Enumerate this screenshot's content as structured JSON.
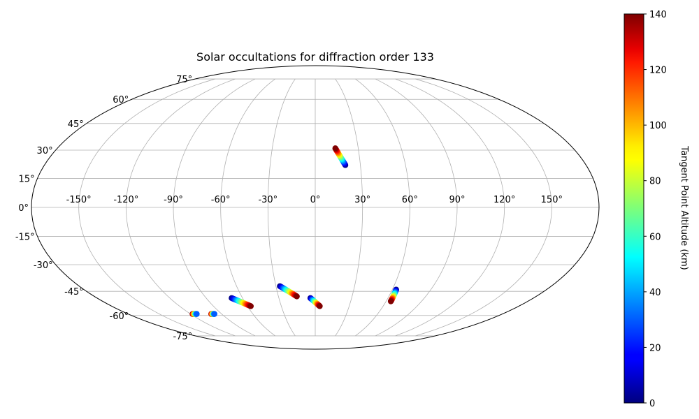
{
  "chart_data": {
    "type": "scatter",
    "projection": "mollweide",
    "title": "Solar occultations for diffraction order 133",
    "longitude_ticks": [
      "-150°",
      "-120°",
      "-90°",
      "-60°",
      "-30°",
      "0°",
      "30°",
      "60°",
      "90°",
      "120°",
      "150°"
    ],
    "latitude_ticks": [
      "75°",
      "60°",
      "45°",
      "30°",
      "15°",
      "0°",
      "-15°",
      "-30°",
      "-45°",
      "-60°",
      "-75°"
    ],
    "grid": true,
    "colorbar": {
      "label": "Tangent Point Altitude (km)",
      "colormap": "jet",
      "range": [
        0,
        140
      ],
      "ticks": [
        "0",
        "20",
        "40",
        "60",
        "80",
        "100",
        "120",
        "140"
      ],
      "position": "right"
    },
    "tracks": [
      {
        "start": {
          "lon": 20,
          "lat": 22,
          "alt": 0
        },
        "end": {
          "lon": 14,
          "lat": 31,
          "alt": 140
        }
      },
      {
        "start": {
          "lon": -27,
          "lat": -42,
          "alt": 0
        },
        "end": {
          "lon": -15,
          "lat": -48,
          "alt": 140
        }
      },
      {
        "start": {
          "lon": -4,
          "lat": -49,
          "alt": 0
        },
        "end": {
          "lon": 4,
          "lat": -54,
          "alt": 140
        }
      },
      {
        "start": {
          "lon": -69,
          "lat": -49,
          "alt": 0
        },
        "end": {
          "lon": -57,
          "lat": -54,
          "alt": 140
        }
      },
      {
        "start": {
          "lon": 63,
          "lat": -44,
          "alt": 0
        },
        "end": {
          "lon": 64,
          "lat": -51,
          "alt": 140
        }
      },
      {
        "start": {
          "lon": -118,
          "lat": -59,
          "alt": 140
        },
        "end": {
          "lon": -114,
          "lat": -59,
          "alt": 30
        }
      },
      {
        "start": {
          "lon": -100,
          "lat": -59,
          "alt": 140
        },
        "end": {
          "lon": -97,
          "lat": -59,
          "alt": 30
        }
      }
    ]
  }
}
